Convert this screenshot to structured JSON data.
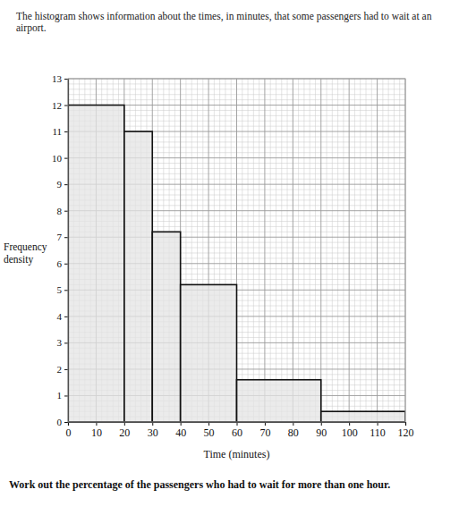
{
  "chart_data": {
    "type": "histogram",
    "title": "The histogram shows information about the times, in minutes, that some passengers had to wait at an airport.",
    "x_label": "Time (minutes)",
    "y_label": "Frequency density",
    "bins": [
      0,
      20,
      30,
      40,
      60,
      90,
      120
    ],
    "values": [
      12,
      11,
      7.2,
      5.2,
      1.6,
      0.4
    ],
    "color": "#e4e4e4",
    "xlim": [
      0,
      120
    ],
    "xticks": [
      0,
      10,
      20,
      30,
      40,
      50,
      60,
      70,
      80,
      90,
      100,
      110,
      120
    ],
    "ylim": [
      0,
      13
    ],
    "yticks": [
      0,
      1,
      2,
      3,
      4,
      5,
      6,
      7,
      8,
      9,
      10,
      11,
      12,
      13
    ],
    "grid": true,
    "annotations": [
      "Work out the percentage of the passengers who had to wait for more than one hour."
    ]
  }
}
